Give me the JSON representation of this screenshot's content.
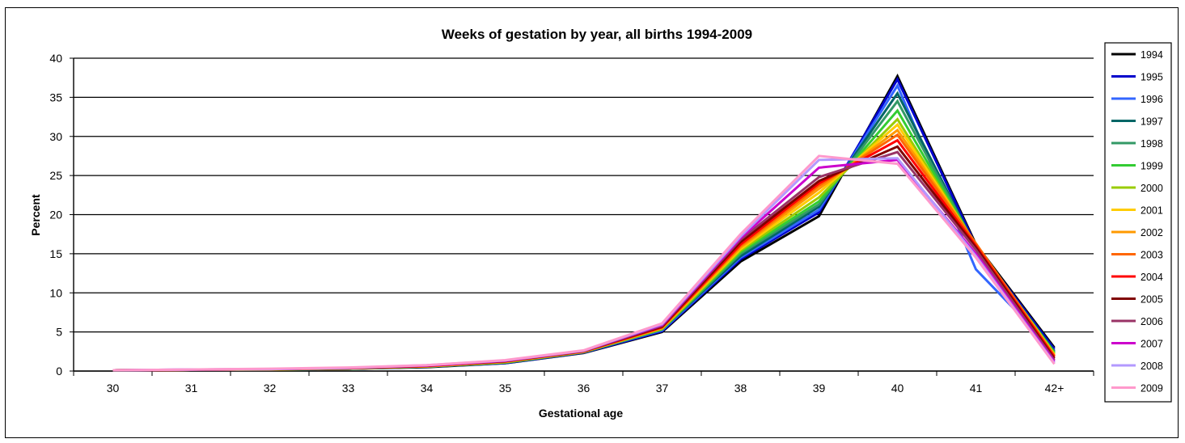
{
  "chart_data": {
    "type": "line",
    "title": "Weeks of gestation by year, all births 1994-2009",
    "xlabel": "Gestational age",
    "ylabel": "Percent",
    "ylim": [
      0,
      40
    ],
    "yticks": [
      0,
      5,
      10,
      15,
      20,
      25,
      30,
      35,
      40
    ],
    "grid": "horizontal",
    "legend_position": "right",
    "categories": [
      "30",
      "31",
      "32",
      "33",
      "34",
      "35",
      "36",
      "37",
      "38",
      "39",
      "40",
      "41",
      "42+"
    ],
    "series": [
      {
        "name": "1994",
        "color": "#000000",
        "values": [
          0.1,
          0.15,
          0.2,
          0.3,
          0.5,
          1.0,
          2.3,
          5.0,
          14.0,
          19.8,
          37.7,
          16.2,
          3.0
        ]
      },
      {
        "name": "1995",
        "color": "#0000cc",
        "values": [
          0.1,
          0.15,
          0.2,
          0.3,
          0.55,
          1.0,
          2.35,
          5.1,
          14.3,
          20.3,
          37.3,
          16.0,
          2.8
        ]
      },
      {
        "name": "1996",
        "color": "#3366ff",
        "values": [
          0.1,
          0.15,
          0.2,
          0.3,
          0.55,
          1.05,
          2.4,
          5.2,
          14.5,
          20.6,
          36.5,
          13.0,
          2.6
        ]
      },
      {
        "name": "1997",
        "color": "#006666",
        "values": [
          0.1,
          0.15,
          0.2,
          0.3,
          0.55,
          1.05,
          2.4,
          5.3,
          14.7,
          21.0,
          35.5,
          15.8,
          2.5
        ]
      },
      {
        "name": "1998",
        "color": "#339966",
        "values": [
          0.1,
          0.15,
          0.2,
          0.3,
          0.6,
          1.1,
          2.4,
          5.3,
          15.0,
          21.3,
          34.5,
          15.9,
          2.4
        ]
      },
      {
        "name": "1999",
        "color": "#33cc33",
        "values": [
          0.1,
          0.15,
          0.2,
          0.3,
          0.6,
          1.1,
          2.45,
          5.4,
          15.2,
          21.7,
          33.3,
          16.0,
          2.3
        ]
      },
      {
        "name": "2000",
        "color": "#99cc00",
        "values": [
          0.1,
          0.15,
          0.2,
          0.35,
          0.6,
          1.15,
          2.45,
          5.4,
          15.4,
          22.2,
          32.2,
          16.1,
          2.2
        ]
      },
      {
        "name": "2001",
        "color": "#ffcc00",
        "values": [
          0.1,
          0.15,
          0.2,
          0.35,
          0.6,
          1.15,
          2.45,
          5.5,
          15.6,
          22.8,
          31.5,
          16.2,
          2.1
        ]
      },
      {
        "name": "2002",
        "color": "#ff9900",
        "values": [
          0.1,
          0.15,
          0.25,
          0.35,
          0.65,
          1.2,
          2.5,
          5.5,
          15.8,
          23.3,
          30.8,
          16.3,
          2.0
        ]
      },
      {
        "name": "2003",
        "color": "#ff6600",
        "values": [
          0.1,
          0.15,
          0.25,
          0.35,
          0.65,
          1.2,
          2.5,
          5.6,
          16.0,
          23.7,
          30.2,
          16.3,
          1.9
        ]
      },
      {
        "name": "2004",
        "color": "#ff0000",
        "values": [
          0.1,
          0.15,
          0.25,
          0.35,
          0.65,
          1.25,
          2.5,
          5.6,
          16.2,
          24.0,
          29.5,
          16.0,
          1.8
        ]
      },
      {
        "name": "2005",
        "color": "#800000",
        "values": [
          0.1,
          0.15,
          0.25,
          0.4,
          0.7,
          1.25,
          2.55,
          5.7,
          16.5,
          24.3,
          28.7,
          15.8,
          1.6
        ]
      },
      {
        "name": "2006",
        "color": "#993366",
        "values": [
          0.1,
          0.15,
          0.25,
          0.4,
          0.7,
          1.3,
          2.55,
          5.8,
          16.8,
          24.8,
          28.0,
          15.5,
          1.4
        ]
      },
      {
        "name": "2007",
        "color": "#cc00cc",
        "values": [
          0.1,
          0.2,
          0.25,
          0.4,
          0.7,
          1.3,
          2.6,
          5.9,
          17.0,
          26.0,
          27.0,
          15.0,
          1.2
        ]
      },
      {
        "name": "2008",
        "color": "#b399ff",
        "values": [
          0.1,
          0.2,
          0.25,
          0.4,
          0.75,
          1.35,
          2.6,
          6.0,
          17.2,
          27.0,
          27.2,
          14.7,
          1.0
        ]
      },
      {
        "name": "2009",
        "color": "#ff99cc",
        "values": [
          0.1,
          0.2,
          0.3,
          0.45,
          0.75,
          1.4,
          2.65,
          6.1,
          17.5,
          27.5,
          26.5,
          14.5,
          0.9
        ]
      }
    ]
  }
}
